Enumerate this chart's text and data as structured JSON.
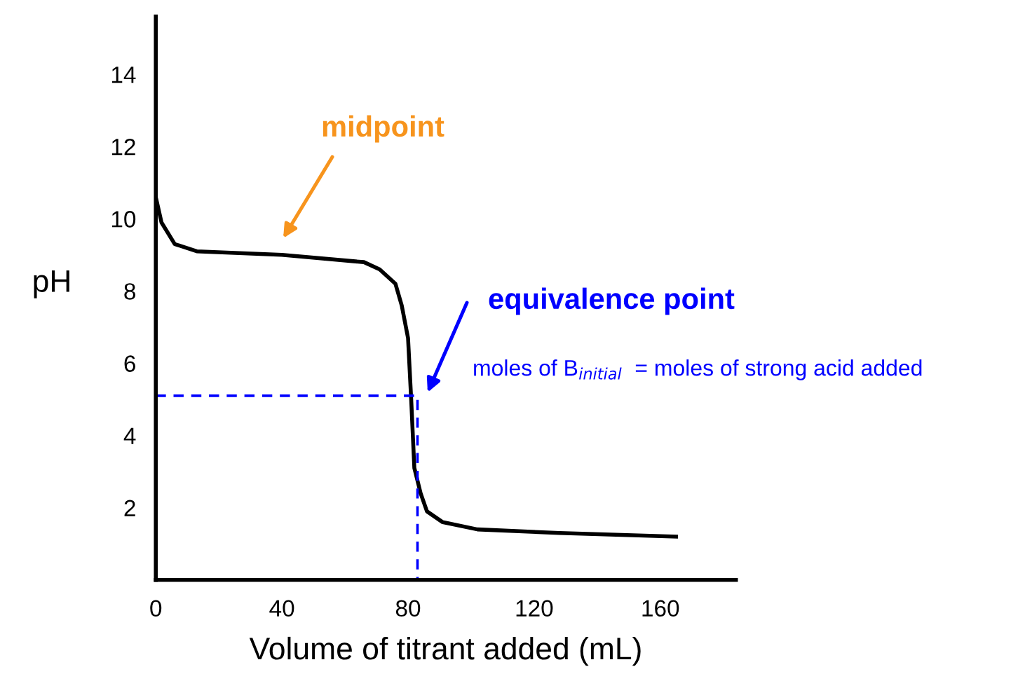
{
  "chart_data": {
    "type": "line",
    "xlabel": "Volume of titrant added (mL)",
    "ylabel": "pH",
    "series": [
      {
        "color": "#000000",
        "x": [
          0,
          1.8,
          6,
          13,
          40,
          66,
          71,
          76,
          78,
          80,
          81,
          82,
          84,
          86,
          91,
          102,
          128,
          165
        ],
        "values": [
          10.6,
          9.9,
          9.3,
          9.1,
          9.0,
          8.8,
          8.6,
          8.2,
          7.6,
          6.7,
          5.0,
          3.1,
          2.4,
          1.9,
          1.6,
          1.4,
          1.3,
          1.2
        ]
      },
      {
        "color": "#0000ff",
        "line_style": "dashed",
        "x": [
          0,
          83,
          83
        ],
        "values": [
          5.1,
          5.1,
          0
        ]
      }
    ],
    "annotations": [
      "midpoint",
      "equivalence point",
      "moles of B$_{initial}$  = moles of strong acid added"
    ],
    "xlim": [
      0,
      184
    ],
    "ylim": [
      0,
      15.6
    ],
    "xticks": [
      0,
      40,
      80,
      120,
      160
    ],
    "yticks": [
      2,
      4,
      6,
      8,
      10,
      12,
      14
    ],
    "grid": false,
    "legend": false
  }
}
